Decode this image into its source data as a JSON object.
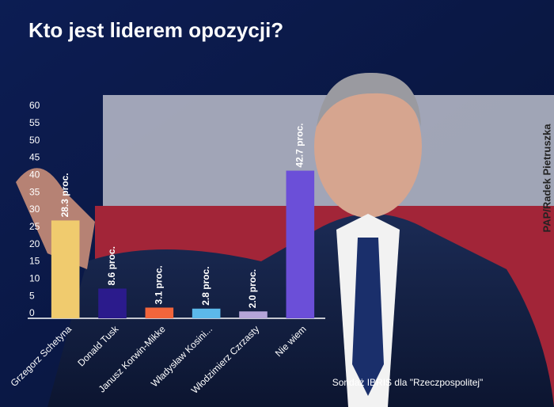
{
  "chart_data": {
    "type": "bar",
    "title": "Kto jest liderem opozycji?",
    "source": "Sondaż IBRIS dla \"Rzeczpospolitej\"",
    "categories": [
      "Grzegorz Schetyna",
      "Donald Tusk",
      "Janusz Korwin-Mikke",
      "Władysław Kosini...",
      "Włodzimierz Czrzasty",
      "Nie wiem"
    ],
    "values": [
      28.3,
      8.6,
      3.1,
      2.8,
      2.0,
      42.7
    ],
    "value_labels": [
      "28.3 proc.",
      "8.6 proc.",
      "3.1 proc.",
      "2.8 proc.",
      "2.0 proc.",
      "42.7 proc."
    ],
    "colors": [
      "#f0cb6e",
      "#2b1b8c",
      "#f2653b",
      "#5cb9ea",
      "#b5a5d8",
      "#6b4fd8"
    ],
    "ylim": [
      0,
      60
    ],
    "yticks": [
      0,
      5,
      10,
      15,
      20,
      25,
      30,
      35,
      40,
      45,
      50,
      55,
      60
    ]
  },
  "photo_credit": "PAP/Radek Pietruszka"
}
